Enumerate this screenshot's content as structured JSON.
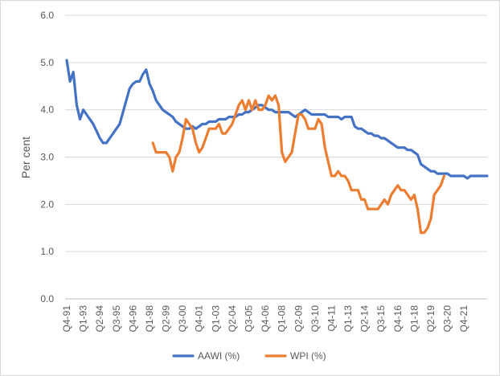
{
  "chart_data": {
    "type": "line",
    "title": "",
    "xlabel": "",
    "ylabel": "Per cent",
    "ylim": [
      0,
      6
    ],
    "yticks": [
      "0.0",
      "1.0",
      "2.0",
      "3.0",
      "4.0",
      "5.0",
      "6.0"
    ],
    "grid": "horizontal",
    "legend_position": "bottom",
    "x_start_quarter": "Q4-91",
    "x_tick_labels": [
      "Q4-91",
      "Q1-93",
      "Q2-94",
      "Q3-95",
      "Q4-96",
      "Q1-98",
      "Q2-99",
      "Q3-00",
      "Q4-01",
      "Q1-03",
      "Q2-04",
      "Q3-05",
      "Q4-06",
      "Q1-08",
      "Q2-09",
      "Q3-10",
      "Q4-11",
      "Q1-13",
      "Q2-14",
      "Q3-15",
      "Q4-16",
      "Q1-18",
      "Q2-19",
      "Q3-20",
      "Q4-21"
    ],
    "series": [
      {
        "name": "AAWI (%)",
        "color": "#4472c4",
        "start_index": 0,
        "values": [
          5.05,
          4.6,
          4.8,
          4.1,
          3.8,
          4.0,
          3.9,
          3.8,
          3.7,
          3.55,
          3.4,
          3.3,
          3.3,
          3.4,
          3.5,
          3.6,
          3.7,
          3.95,
          4.2,
          4.45,
          4.55,
          4.6,
          4.6,
          4.75,
          4.85,
          4.55,
          4.4,
          4.2,
          4.1,
          4.0,
          3.95,
          3.9,
          3.85,
          3.75,
          3.7,
          3.65,
          3.6,
          3.6,
          3.65,
          3.6,
          3.65,
          3.7,
          3.7,
          3.75,
          3.75,
          3.75,
          3.8,
          3.8,
          3.8,
          3.85,
          3.85,
          3.85,
          3.9,
          3.9,
          3.95,
          3.95,
          4.0,
          4.05,
          4.1,
          4.1,
          4.05,
          4.0,
          4.0,
          3.95,
          3.95,
          3.95,
          3.95,
          3.95,
          3.9,
          3.85,
          3.9,
          3.95,
          4.0,
          3.95,
          3.9,
          3.9,
          3.9,
          3.9,
          3.9,
          3.85,
          3.85,
          3.85,
          3.85,
          3.8,
          3.85,
          3.85,
          3.85,
          3.65,
          3.6,
          3.6,
          3.55,
          3.5,
          3.5,
          3.45,
          3.45,
          3.4,
          3.4,
          3.35,
          3.3,
          3.25,
          3.2,
          3.2,
          3.2,
          3.15,
          3.15,
          3.1,
          3.05,
          2.85,
          2.8,
          2.75,
          2.7,
          2.7,
          2.65,
          2.65,
          2.65,
          2.65,
          2.6,
          2.6,
          2.6,
          2.6,
          2.6,
          2.55,
          2.6,
          2.6,
          2.6,
          2.6,
          2.6,
          2.6
        ]
      },
      {
        "name": "WPI (%)",
        "color": "#ed7d31",
        "start_index": 26,
        "values": [
          3.3,
          3.1,
          3.1,
          3.1,
          3.1,
          3.0,
          2.7,
          3.0,
          3.1,
          3.4,
          3.8,
          3.7,
          3.6,
          3.3,
          3.1,
          3.2,
          3.4,
          3.6,
          3.6,
          3.6,
          3.7,
          3.5,
          3.5,
          3.6,
          3.7,
          3.9,
          4.1,
          4.2,
          4.0,
          4.2,
          4.0,
          4.2,
          4.0,
          4.0,
          4.1,
          4.3,
          4.2,
          4.3,
          4.1,
          3.1,
          2.9,
          3.0,
          3.1,
          3.5,
          3.9,
          3.9,
          3.8,
          3.6,
          3.6,
          3.6,
          3.8,
          3.7,
          3.2,
          2.9,
          2.6,
          2.6,
          2.7,
          2.6,
          2.6,
          2.5,
          2.3,
          2.3,
          2.3,
          2.1,
          2.1,
          1.9,
          1.9,
          1.9,
          1.9,
          2.0,
          2.1,
          2.0,
          2.2,
          2.3,
          2.4,
          2.3,
          2.3,
          2.2,
          2.1,
          2.2,
          1.9,
          1.4,
          1.4,
          1.5,
          1.7,
          2.2,
          2.3,
          2.4,
          2.6
        ]
      }
    ]
  }
}
